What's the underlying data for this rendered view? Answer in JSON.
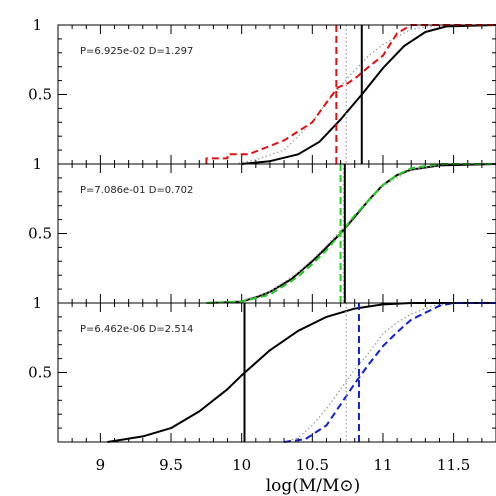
{
  "chart_data": {
    "type": "line",
    "xlabel": "log(M/M⊙)",
    "xlim": [
      8.7,
      11.8
    ],
    "x_ticks": [
      "9",
      "9.5",
      "10",
      "10.5",
      "11",
      "11.5"
    ],
    "ylim": [
      0,
      1
    ],
    "y_ticks": [
      "0.5",
      "1"
    ],
    "panels": [
      {
        "annotation": "P=6.925e-02 D=1.297",
        "series": [
          {
            "style": "solid",
            "color": "#000000",
            "points": [
              [
                10.0,
                0
              ],
              [
                10.2,
                0.02
              ],
              [
                10.4,
                0.07
              ],
              [
                10.55,
                0.16
              ],
              [
                10.7,
                0.32
              ],
              [
                10.85,
                0.5
              ],
              [
                11.0,
                0.69
              ],
              [
                11.15,
                0.85
              ],
              [
                11.3,
                0.95
              ],
              [
                11.45,
                0.99
              ],
              [
                11.8,
                1.0
              ]
            ]
          },
          {
            "style": "dotted",
            "color": "#999999",
            "points": [
              [
                9.95,
                0
              ],
              [
                10.1,
                0.03
              ],
              [
                10.3,
                0.1
              ],
              [
                10.5,
                0.3
              ],
              [
                10.6,
                0.44
              ],
              [
                10.75,
                0.62
              ],
              [
                10.9,
                0.78
              ],
              [
                11.0,
                0.86
              ],
              [
                11.2,
                0.97
              ],
              [
                11.4,
                1.0
              ],
              [
                11.8,
                1.0
              ]
            ]
          },
          {
            "style": "dashed",
            "color": "#e01010",
            "points": [
              [
                9.75,
                0
              ],
              [
                9.75,
                0.04
              ],
              [
                9.9,
                0.04
              ],
              [
                9.9,
                0.07
              ],
              [
                10.05,
                0.07
              ],
              [
                10.3,
                0.17
              ],
              [
                10.5,
                0.3
              ],
              [
                10.62,
                0.47
              ],
              [
                10.68,
                0.55
              ],
              [
                10.75,
                0.58
              ],
              [
                10.82,
                0.63
              ],
              [
                10.9,
                0.7
              ],
              [
                11.0,
                0.78
              ],
              [
                11.1,
                0.94
              ],
              [
                11.2,
                1.0
              ],
              [
                11.8,
                1.0
              ]
            ]
          }
        ],
        "vlines": [
          {
            "x": 10.85,
            "style": "solid",
            "color": "#000000"
          },
          {
            "x": 10.74,
            "style": "dotted",
            "color": "#999999"
          },
          {
            "x": 10.67,
            "style": "dashed",
            "color": "#e01010"
          }
        ]
      },
      {
        "annotation": "P=7.086e-01 D=0.702",
        "series": [
          {
            "style": "solid",
            "color": "#000000",
            "points": [
              [
                9.75,
                0
              ],
              [
                9.9,
                0.005
              ],
              [
                10.0,
                0.01
              ],
              [
                10.1,
                0.04
              ],
              [
                10.2,
                0.08
              ],
              [
                10.35,
                0.17
              ],
              [
                10.5,
                0.3
              ],
              [
                10.6,
                0.4
              ],
              [
                10.7,
                0.5
              ],
              [
                10.8,
                0.62
              ],
              [
                10.9,
                0.74
              ],
              [
                11.0,
                0.85
              ],
              [
                11.1,
                0.92
              ],
              [
                11.2,
                0.96
              ],
              [
                11.4,
                0.99
              ],
              [
                11.8,
                1.0
              ]
            ]
          },
          {
            "style": "dotted",
            "color": "#999999",
            "points": [
              [
                9.75,
                0
              ],
              [
                10.0,
                0.015
              ],
              [
                10.2,
                0.08
              ],
              [
                10.4,
                0.22
              ],
              [
                10.55,
                0.36
              ],
              [
                10.7,
                0.52
              ],
              [
                10.85,
                0.68
              ],
              [
                11.0,
                0.84
              ],
              [
                11.2,
                0.96
              ],
              [
                11.45,
                1.0
              ],
              [
                11.8,
                1.0
              ]
            ]
          },
          {
            "style": "dashed",
            "color": "#22cc22",
            "points": [
              [
                9.75,
                0
              ],
              [
                10.0,
                0.01
              ],
              [
                10.2,
                0.06
              ],
              [
                10.4,
                0.19
              ],
              [
                10.5,
                0.28
              ],
              [
                10.6,
                0.38
              ],
              [
                10.7,
                0.5
              ],
              [
                10.8,
                0.63
              ],
              [
                10.9,
                0.74
              ],
              [
                11.0,
                0.85
              ],
              [
                11.1,
                0.92
              ],
              [
                11.2,
                0.97
              ],
              [
                11.4,
                1.0
              ],
              [
                11.8,
                1.0
              ]
            ]
          }
        ],
        "vlines": [
          {
            "x": 10.73,
            "style": "solid",
            "color": "#000000"
          },
          {
            "x": 10.72,
            "style": "dotted",
            "color": "#999999"
          },
          {
            "x": 10.7,
            "style": "dashed",
            "color": "#22cc22"
          }
        ]
      },
      {
        "annotation": "P=6.462e-06 D=2.514",
        "series": [
          {
            "style": "solid",
            "color": "#000000",
            "points": [
              [
                9.05,
                0
              ],
              [
                9.3,
                0.04
              ],
              [
                9.5,
                0.1
              ],
              [
                9.7,
                0.22
              ],
              [
                9.9,
                0.38
              ],
              [
                10.0,
                0.48
              ],
              [
                10.2,
                0.66
              ],
              [
                10.4,
                0.8
              ],
              [
                10.6,
                0.9
              ],
              [
                10.8,
                0.96
              ],
              [
                11.0,
                0.99
              ],
              [
                11.2,
                1.0
              ],
              [
                11.8,
                1.0
              ]
            ]
          },
          {
            "style": "dotted",
            "color": "#999999",
            "points": [
              [
                10.3,
                0
              ],
              [
                10.4,
                0.03
              ],
              [
                10.5,
                0.12
              ],
              [
                10.6,
                0.24
              ],
              [
                10.7,
                0.38
              ],
              [
                10.8,
                0.52
              ],
              [
                10.9,
                0.64
              ],
              [
                11.0,
                0.78
              ],
              [
                11.1,
                0.86
              ],
              [
                11.2,
                0.92
              ],
              [
                11.35,
                0.98
              ],
              [
                11.5,
                1.0
              ],
              [
                11.8,
                1.0
              ]
            ]
          },
          {
            "style": "dashed",
            "color": "#1020cc",
            "points": [
              [
                10.3,
                0
              ],
              [
                10.45,
                0.02
              ],
              [
                10.6,
                0.12
              ],
              [
                10.7,
                0.27
              ],
              [
                10.8,
                0.42
              ],
              [
                10.9,
                0.56
              ],
              [
                11.0,
                0.69
              ],
              [
                11.1,
                0.79
              ],
              [
                11.2,
                0.88
              ],
              [
                11.3,
                0.93
              ],
              [
                11.4,
                0.98
              ],
              [
                11.5,
                1.0
              ],
              [
                11.8,
                1.0
              ]
            ]
          }
        ],
        "vlines": [
          {
            "x": 10.02,
            "style": "solid",
            "color": "#000000"
          },
          {
            "x": 10.74,
            "style": "dotted",
            "color": "#999999"
          },
          {
            "x": 10.83,
            "style": "dashed",
            "color": "#1020cc"
          }
        ]
      }
    ]
  }
}
